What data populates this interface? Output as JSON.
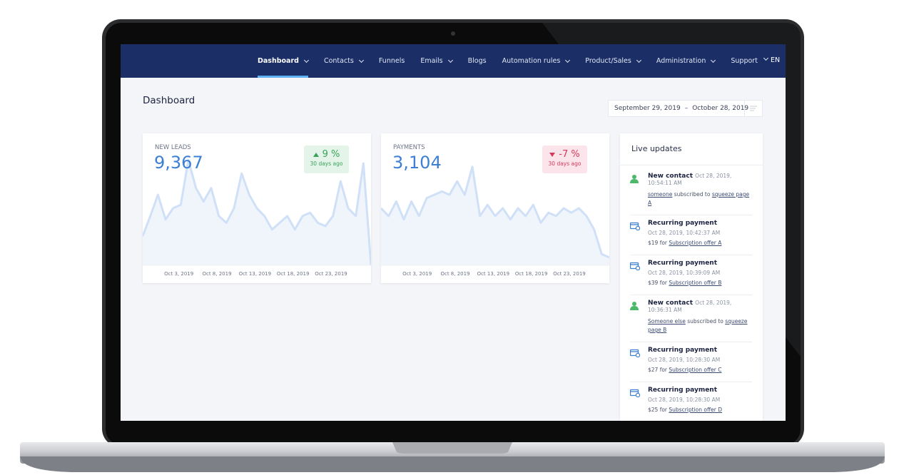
{
  "nav": {
    "items": [
      {
        "label": "Dashboard",
        "dropdown": true,
        "active": true
      },
      {
        "label": "Contacts",
        "dropdown": true
      },
      {
        "label": "Funnels",
        "dropdown": false
      },
      {
        "label": "Emails",
        "dropdown": true
      },
      {
        "label": "Blogs",
        "dropdown": false
      },
      {
        "label": "Automation rules",
        "dropdown": true
      },
      {
        "label": "Product/Sales",
        "dropdown": true
      },
      {
        "label": "Administration",
        "dropdown": true
      },
      {
        "label": "Support",
        "dropdown": false
      }
    ],
    "language": "EN"
  },
  "page": {
    "title": "Dashboard",
    "date_from": "September 29, 2019",
    "date_separator": "–",
    "date_to": "October 28, 2019"
  },
  "cards": [
    {
      "label": "NEW LEADS",
      "total": "9,367",
      "change": "9 %",
      "direction": "up",
      "period": "30 days ago",
      "chart_data": {
        "type": "line",
        "color": "#cfe0f7",
        "xlim": [
          0,
          30
        ],
        "ylim": [
          0,
          100
        ],
        "xticks": [
          {
            "value": 4,
            "label": "Oct 3, 2019"
          },
          {
            "value": 9,
            "label": "Oct 8, 2019"
          },
          {
            "value": 14,
            "label": "Oct 13, 2019"
          },
          {
            "value": 19,
            "label": "Oct 18, 2019"
          },
          {
            "value": 24,
            "label": "Oct 23, 2019"
          }
        ],
        "values": [
          26,
          44,
          63,
          41,
          51,
          54,
          94,
          69,
          57,
          69,
          44,
          38,
          51,
          82,
          63,
          51,
          44,
          32,
          38,
          44,
          32,
          44,
          47,
          38,
          35,
          44,
          75,
          51,
          44,
          91,
          0
        ]
      }
    },
    {
      "label": "PAYMENTS",
      "total": "3,104",
      "change": "-7 %",
      "direction": "down",
      "period": "30 days ago",
      "chart_data": {
        "type": "line",
        "color": "#cfe0f7",
        "xlim": [
          0,
          30
        ],
        "ylim": [
          0,
          100
        ],
        "xticks": [
          {
            "value": 4,
            "label": "Oct 3, 2019"
          },
          {
            "value": 9,
            "label": "Oct 8, 2019"
          },
          {
            "value": 14,
            "label": "Oct 13, 2019"
          },
          {
            "value": 19,
            "label": "Oct 18, 2019"
          },
          {
            "value": 24,
            "label": "Oct 23, 2019"
          }
        ],
        "values": [
          51,
          44,
          57,
          41,
          57,
          44,
          60,
          63,
          66,
          63,
          75,
          63,
          88,
          44,
          54,
          44,
          51,
          41,
          51,
          44,
          54,
          38,
          47,
          44,
          51,
          47,
          51,
          44,
          32,
          10,
          7
        ]
      }
    }
  ],
  "live_updates": {
    "title": "Live updates",
    "items": [
      {
        "kind": "contact",
        "title": "New contact",
        "time": "Oct 28, 2019, 10:54:11 AM",
        "parts": [
          {
            "text": "someone",
            "link": true
          },
          {
            "text": " subscribed to ",
            "link": false
          },
          {
            "text": "squeeze page A",
            "link": true
          }
        ]
      },
      {
        "kind": "payment",
        "title": "Recurring payment",
        "time": "Oct 28, 2019, 10:42:37 AM",
        "parts": [
          {
            "text": "$19 for ",
            "link": false
          },
          {
            "text": "Subscription offer A",
            "link": true
          }
        ]
      },
      {
        "kind": "payment",
        "title": "Recurring payment",
        "time": "Oct 28, 2019, 10:39:09 AM",
        "parts": [
          {
            "text": "$39 for ",
            "link": false
          },
          {
            "text": "Subscription offer B",
            "link": true
          }
        ]
      },
      {
        "kind": "contact",
        "title": "New contact",
        "time": "Oct 28, 2019, 10:36:31 AM",
        "parts": [
          {
            "text": "Someone else",
            "link": true
          },
          {
            "text": " subscribed to ",
            "link": false
          },
          {
            "text": "squeeze page B",
            "link": true
          }
        ]
      },
      {
        "kind": "payment",
        "title": "Recurring payment",
        "time": "Oct 28, 2019, 10:28:30 AM",
        "parts": [
          {
            "text": "$27 for ",
            "link": false
          },
          {
            "text": "Subscription offer C",
            "link": true
          }
        ]
      },
      {
        "kind": "payment",
        "title": "Recurring payment",
        "time": "Oct 28, 2019, 10:28:30 AM",
        "parts": [
          {
            "text": "$25 for ",
            "link": false
          },
          {
            "text": "Subscription offer D",
            "link": true
          }
        ]
      }
    ]
  }
}
